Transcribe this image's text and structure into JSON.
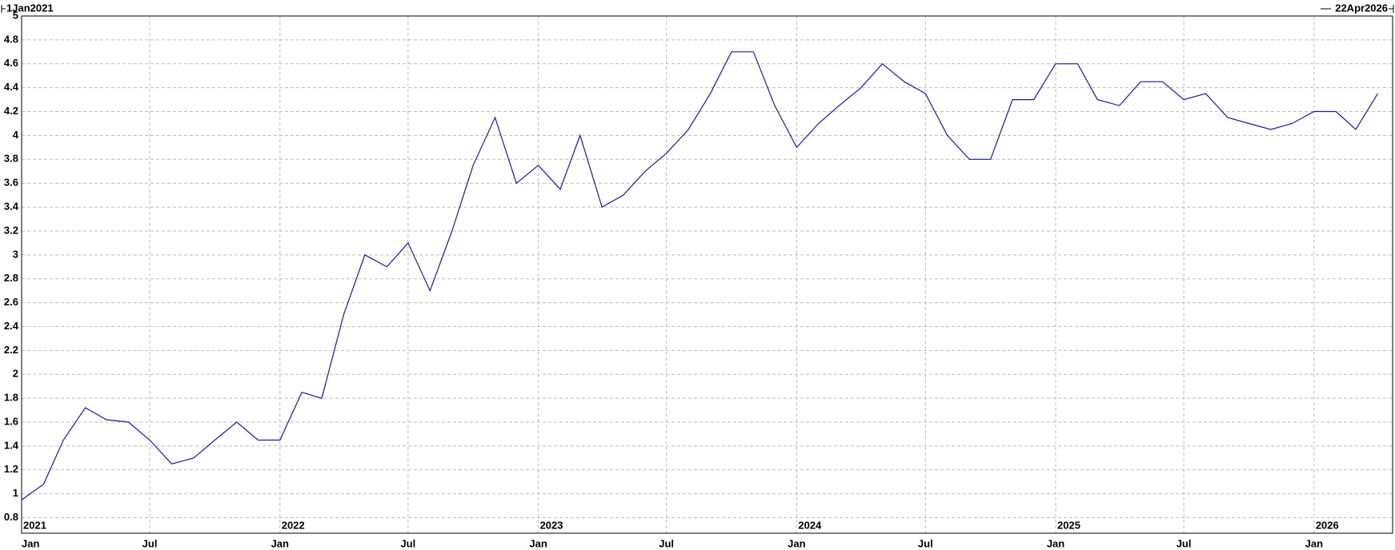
{
  "chart_data": {
    "type": "line",
    "start_label": "1Jan2021",
    "end_label": "22Apr2026",
    "xlim": [
      "2021-01-01",
      "2026-04-22"
    ],
    "ylim": [
      0.67,
      5
    ],
    "yticks": [
      0.8,
      1,
      1.2,
      1.4,
      1.6,
      1.8,
      2,
      2.2,
      2.4,
      2.6,
      2.8,
      3,
      3.2,
      3.4,
      3.6,
      3.8,
      4,
      4.2,
      4.4,
      4.6,
      4.8,
      5
    ],
    "xticks": [
      {
        "value": "2021-01",
        "label": "Jan"
      },
      {
        "value": "2021-07",
        "label": "Jul"
      },
      {
        "value": "2022-01",
        "label": "Jan"
      },
      {
        "value": "2022-07",
        "label": "Jul"
      },
      {
        "value": "2023-01",
        "label": "Jan"
      },
      {
        "value": "2023-07",
        "label": "Jul"
      },
      {
        "value": "2024-01",
        "label": "Jan"
      },
      {
        "value": "2024-07",
        "label": "Jul"
      },
      {
        "value": "2025-01",
        "label": "Jan"
      },
      {
        "value": "2025-07",
        "label": "Jul"
      },
      {
        "value": "2026-01",
        "label": "Jan"
      }
    ],
    "year_labels": [
      {
        "value": "2021-01",
        "label": "2021"
      },
      {
        "value": "2022-01",
        "label": "2022"
      },
      {
        "value": "2023-01",
        "label": "2023"
      },
      {
        "value": "2024-01",
        "label": "2024"
      },
      {
        "value": "2025-01",
        "label": "2025"
      },
      {
        "value": "2026-01",
        "label": "2026"
      }
    ],
    "grid": true,
    "x": [
      "2021-01",
      "2021-02",
      "2021-03",
      "2021-04",
      "2021-05",
      "2021-06",
      "2021-07",
      "2021-08",
      "2021-09",
      "2021-10",
      "2021-11",
      "2021-12",
      "2022-01",
      "2022-02",
      "2022-03",
      "2022-04",
      "2022-05",
      "2022-06",
      "2022-07",
      "2022-08",
      "2022-09",
      "2022-10",
      "2022-11",
      "2022-12",
      "2023-01",
      "2023-02",
      "2023-03",
      "2023-04",
      "2023-05",
      "2023-06",
      "2023-07",
      "2023-08",
      "2023-09",
      "2023-10",
      "2023-11",
      "2023-12",
      "2024-01",
      "2024-02",
      "2024-03",
      "2024-04",
      "2024-05",
      "2024-06",
      "2024-07",
      "2024-08",
      "2024-09",
      "2024-10",
      "2024-11",
      "2024-12",
      "2025-01",
      "2025-02",
      "2025-03",
      "2025-04",
      "2025-05",
      "2025-06",
      "2025-07",
      "2025-08",
      "2025-09",
      "2025-10",
      "2025-11",
      "2025-12",
      "2026-01",
      "2026-02",
      "2026-03",
      "2026-04"
    ],
    "series": [
      {
        "color": "#1a1a9c",
        "values": [
          0.95,
          1.08,
          1.45,
          1.72,
          1.62,
          1.6,
          1.45,
          1.25,
          1.3,
          1.45,
          1.6,
          1.45,
          1.45,
          1.85,
          1.8,
          2.5,
          3.0,
          2.9,
          3.1,
          2.7,
          3.2,
          3.75,
          4.15,
          3.6,
          3.75,
          3.55,
          4.0,
          3.4,
          3.5,
          3.7,
          3.85,
          4.05,
          4.35,
          4.7,
          4.7,
          4.25,
          3.9,
          4.1,
          4.25,
          4.4,
          4.6,
          4.45,
          4.35,
          4.0,
          3.8,
          3.8,
          4.3,
          4.3,
          4.6,
          4.6,
          4.3,
          4.25,
          4.45,
          4.45,
          4.3,
          4.35,
          4.15,
          4.1,
          4.05,
          4.1,
          4.2,
          4.2,
          4.05,
          4.35
        ]
      }
    ]
  }
}
